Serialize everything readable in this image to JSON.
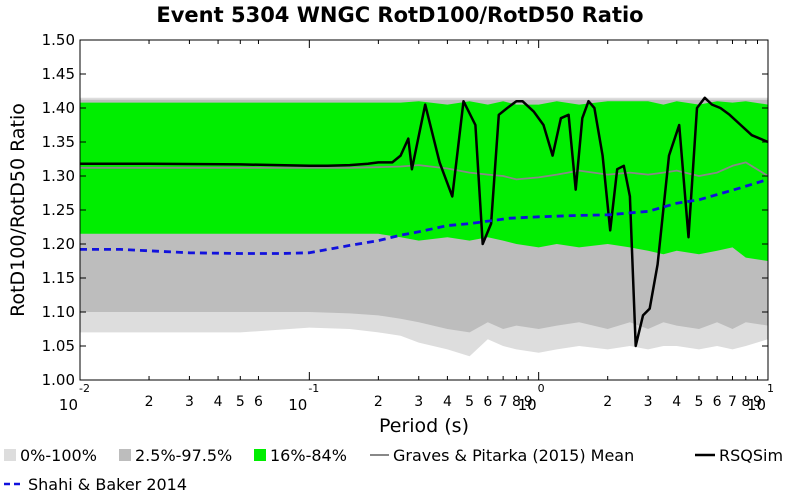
{
  "chart_data": {
    "type": "area",
    "title": "Event 5304 WNGC RotD100/RotD50 Ratio",
    "xlabel": "Period (s)",
    "ylabel": "RotD100/RotD50 Ratio",
    "xscale": "log",
    "xlim": [
      0.01,
      10
    ],
    "ylim": [
      1.0,
      1.5
    ],
    "yticks": [
      "1.00",
      "1.05",
      "1.10",
      "1.15",
      "1.20",
      "1.25",
      "1.30",
      "1.35",
      "1.40",
      "1.45",
      "1.50"
    ],
    "xtick_major": [
      {
        "value": 0.01,
        "base": "10",
        "exp": "-2"
      },
      {
        "value": 0.1,
        "base": "10",
        "exp": "-1"
      },
      {
        "value": 1,
        "base": "10",
        "exp": "0"
      },
      {
        "value": 10,
        "base": "10",
        "exp": "1"
      }
    ],
    "xtick_minor": [
      {
        "value": 0.02,
        "label": "2"
      },
      {
        "value": 0.03,
        "label": "3"
      },
      {
        "value": 0.04,
        "label": "4"
      },
      {
        "value": 0.05,
        "label": "5"
      },
      {
        "value": 0.06,
        "label": "6"
      },
      {
        "value": 0.2,
        "label": "2"
      },
      {
        "value": 0.3,
        "label": "3"
      },
      {
        "value": 0.4,
        "label": "4"
      },
      {
        "value": 0.5,
        "label": "5"
      },
      {
        "value": 0.6,
        "label": "6"
      },
      {
        "value": 0.7,
        "label": "7"
      },
      {
        "value": 0.8,
        "label": "8"
      },
      {
        "value": 0.9,
        "label": "9"
      },
      {
        "value": 2,
        "label": "2"
      },
      {
        "value": 3,
        "label": "3"
      },
      {
        "value": 4,
        "label": "4"
      },
      {
        "value": 5,
        "label": "5"
      },
      {
        "value": 6,
        "label": "6"
      },
      {
        "value": 7,
        "label": "7"
      },
      {
        "value": 8,
        "label": "8"
      },
      {
        "value": 9,
        "label": "9"
      }
    ],
    "grid": false,
    "legend_position": "bottom",
    "colors": {
      "band_0_100": "#dddddd",
      "band_2_97": "#bdbdbd",
      "band_16_84": "#00ee00",
      "gp_mean": "#888888",
      "rsqsim": "#000000",
      "shahi": "#1111dd"
    },
    "bands": [
      {
        "name": "0%-100%",
        "x": [
          0.01,
          0.02,
          0.05,
          0.1,
          0.15,
          0.2,
          0.25,
          0.3,
          0.4,
          0.5,
          0.6,
          0.7,
          0.8,
          1.0,
          1.2,
          1.5,
          2.0,
          2.5,
          3.0,
          3.5,
          4.0,
          5.0,
          6.0,
          7.0,
          8.0,
          10.0
        ],
        "upper": [
          1.415,
          1.415,
          1.415,
          1.415,
          1.415,
          1.415,
          1.415,
          1.415,
          1.415,
          1.415,
          1.415,
          1.415,
          1.415,
          1.415,
          1.415,
          1.415,
          1.415,
          1.415,
          1.415,
          1.415,
          1.415,
          1.415,
          1.415,
          1.415,
          1.415,
          1.415
        ],
        "lower": [
          1.07,
          1.07,
          1.07,
          1.077,
          1.075,
          1.07,
          1.065,
          1.055,
          1.045,
          1.035,
          1.06,
          1.05,
          1.045,
          1.04,
          1.045,
          1.05,
          1.045,
          1.05,
          1.045,
          1.05,
          1.05,
          1.045,
          1.05,
          1.045,
          1.05,
          1.06
        ]
      },
      {
        "name": "2.5%-97.5%",
        "x": [
          0.01,
          0.02,
          0.05,
          0.1,
          0.15,
          0.2,
          0.25,
          0.3,
          0.4,
          0.5,
          0.6,
          0.7,
          0.8,
          1.0,
          1.2,
          1.5,
          2.0,
          2.5,
          3.0,
          3.5,
          4.0,
          5.0,
          6.0,
          7.0,
          8.0,
          10.0
        ],
        "upper": [
          1.412,
          1.412,
          1.412,
          1.412,
          1.412,
          1.412,
          1.412,
          1.412,
          1.412,
          1.412,
          1.412,
          1.412,
          1.412,
          1.412,
          1.412,
          1.412,
          1.412,
          1.412,
          1.412,
          1.412,
          1.412,
          1.412,
          1.412,
          1.412,
          1.412,
          1.412
        ],
        "lower": [
          1.1,
          1.1,
          1.1,
          1.1,
          1.098,
          1.095,
          1.09,
          1.085,
          1.075,
          1.07,
          1.085,
          1.075,
          1.08,
          1.075,
          1.08,
          1.085,
          1.075,
          1.085,
          1.075,
          1.085,
          1.08,
          1.075,
          1.085,
          1.075,
          1.085,
          1.08
        ]
      },
      {
        "name": "16%-84%",
        "x": [
          0.01,
          0.02,
          0.05,
          0.1,
          0.15,
          0.2,
          0.25,
          0.3,
          0.4,
          0.5,
          0.6,
          0.7,
          0.8,
          1.0,
          1.2,
          1.5,
          2.0,
          2.5,
          3.0,
          3.5,
          4.0,
          5.0,
          6.0,
          7.0,
          8.0,
          10.0
        ],
        "upper": [
          1.408,
          1.408,
          1.408,
          1.408,
          1.408,
          1.408,
          1.408,
          1.41,
          1.405,
          1.41,
          1.405,
          1.41,
          1.405,
          1.405,
          1.41,
          1.405,
          1.41,
          1.41,
          1.41,
          1.405,
          1.41,
          1.405,
          1.41,
          1.408,
          1.41,
          1.405
        ],
        "lower": [
          1.215,
          1.215,
          1.215,
          1.215,
          1.215,
          1.215,
          1.21,
          1.205,
          1.21,
          1.205,
          1.21,
          1.205,
          1.2,
          1.195,
          1.2,
          1.195,
          1.2,
          1.195,
          1.19,
          1.185,
          1.19,
          1.185,
          1.19,
          1.195,
          1.18,
          1.175
        ]
      }
    ],
    "series": [
      {
        "name": "Graves & Pitarka (2015) Mean",
        "x": [
          0.01,
          0.02,
          0.05,
          0.1,
          0.15,
          0.2,
          0.25,
          0.3,
          0.4,
          0.5,
          0.6,
          0.7,
          0.8,
          1.0,
          1.2,
          1.5,
          2.0,
          2.5,
          3.0,
          3.5,
          4.0,
          5.0,
          6.0,
          7.0,
          8.0,
          10.0
        ],
        "y": [
          1.312,
          1.312,
          1.312,
          1.312,
          1.312,
          1.313,
          1.314,
          1.316,
          1.311,
          1.305,
          1.302,
          1.3,
          1.295,
          1.298,
          1.302,
          1.308,
          1.302,
          1.305,
          1.302,
          1.305,
          1.308,
          1.3,
          1.305,
          1.315,
          1.32,
          1.3
        ]
      },
      {
        "name": "RSQSim",
        "x": [
          0.01,
          0.02,
          0.05,
          0.1,
          0.12,
          0.15,
          0.18,
          0.2,
          0.23,
          0.25,
          0.27,
          0.28,
          0.32,
          0.37,
          0.42,
          0.47,
          0.53,
          0.57,
          0.62,
          0.67,
          0.73,
          0.8,
          0.85,
          0.95,
          1.05,
          1.15,
          1.25,
          1.35,
          1.45,
          1.55,
          1.65,
          1.75,
          1.9,
          2.05,
          2.2,
          2.35,
          2.5,
          2.65,
          2.85,
          3.05,
          3.3,
          3.7,
          4.1,
          4.5,
          4.9,
          5.3,
          5.7,
          6.2,
          6.8,
          7.6,
          8.5,
          10.0
        ],
        "y": [
          1.318,
          1.318,
          1.317,
          1.315,
          1.315,
          1.316,
          1.318,
          1.32,
          1.32,
          1.33,
          1.355,
          1.31,
          1.405,
          1.32,
          1.27,
          1.41,
          1.375,
          1.2,
          1.23,
          1.39,
          1.4,
          1.41,
          1.41,
          1.395,
          1.375,
          1.33,
          1.385,
          1.39,
          1.28,
          1.385,
          1.41,
          1.4,
          1.33,
          1.22,
          1.31,
          1.315,
          1.27,
          1.05,
          1.095,
          1.105,
          1.17,
          1.33,
          1.375,
          1.21,
          1.4,
          1.415,
          1.405,
          1.4,
          1.39,
          1.375,
          1.36,
          1.35
        ]
      },
      {
        "name": "Shahi & Baker 2014",
        "x": [
          0.01,
          0.015,
          0.02,
          0.03,
          0.05,
          0.075,
          0.1,
          0.15,
          0.2,
          0.25,
          0.3,
          0.4,
          0.5,
          0.75,
          1.0,
          1.5,
          2.0,
          3.0,
          4.0,
          5.0,
          7.5,
          10.0
        ],
        "y": [
          1.192,
          1.192,
          1.19,
          1.187,
          1.186,
          1.186,
          1.187,
          1.198,
          1.205,
          1.213,
          1.218,
          1.227,
          1.23,
          1.238,
          1.24,
          1.242,
          1.243,
          1.248,
          1.26,
          1.265,
          1.282,
          1.295
        ]
      }
    ]
  }
}
